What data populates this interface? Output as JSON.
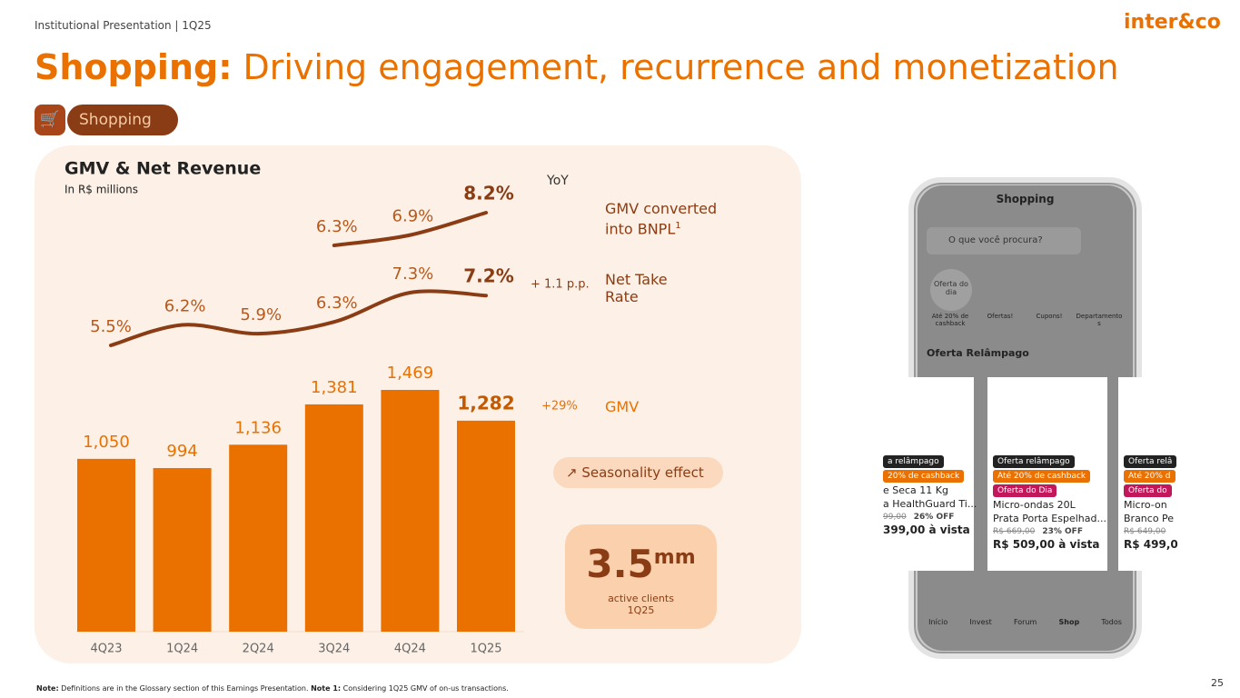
{
  "header": {
    "subtitle": "Institutional Presentation | 1Q25",
    "logo": "inter&co",
    "title_bold": "Shopping:",
    "title_rest": " Driving engagement, recurrence and monetization",
    "tag": "Shopping"
  },
  "chart_data": {
    "type": "combo",
    "title": "GMV & Net Revenue",
    "subtitle": "In R$ millions",
    "yoy_label": "YoY",
    "categories": [
      "4Q23",
      "1Q24",
      "2Q24",
      "3Q24",
      "4Q24",
      "1Q25"
    ],
    "series": [
      {
        "name": "GMV",
        "type": "bar",
        "color": "#ea7100",
        "values": [
          1050,
          994,
          1136,
          1381,
          1469,
          1282
        ],
        "value_labels": [
          "1,050",
          "994",
          "1,136",
          "1,381",
          "1,469",
          "1,282"
        ],
        "yoy": "+29%"
      },
      {
        "name": "Net Take Rate",
        "type": "line",
        "color": "#8a3d14",
        "values": [
          5.5,
          6.2,
          5.9,
          6.3,
          7.3,
          7.2
        ],
        "value_labels": [
          "5.5%",
          "6.2%",
          "5.9%",
          "6.3%",
          "7.3%",
          "7.2%"
        ],
        "yoy": "+ 1.1 p.p."
      },
      {
        "name": "GMV converted into BNPL",
        "name_note": "1",
        "type": "line",
        "color": "#8a3d14",
        "values": [
          null,
          null,
          null,
          6.3,
          6.9,
          8.2
        ],
        "value_labels": [
          null,
          null,
          null,
          "6.3%",
          "6.9%",
          "8.2%"
        ]
      }
    ]
  },
  "callouts": {
    "seasonality": "Seasonality effect",
    "clients_value": 3.5,
    "clients_unit": "mm",
    "clients_label": "active clients",
    "clients_period": "1Q25"
  },
  "phone": {
    "header": "Shopping",
    "search": "O que você procura?",
    "badge": "Oferta do dia",
    "icons": [
      "Até 20% de cashback",
      "Ofertas!",
      "Cupons!",
      "Departamentos"
    ],
    "section": "Oferta Relâmpago",
    "cards": [
      [
        "a relâmpago",
        "20% de cashback",
        "",
        "e Seca 11 Kg",
        "a HealthGuard Ti...",
        "99,00",
        "26% OFF",
        "399,00 à vista"
      ],
      [
        "Oferta relâmpago",
        "Até 20% de cashback",
        "Oferta do Dia",
        "Micro-ondas 20L",
        "Prata Porta Espelhad...",
        "R$ 669,00",
        "23% OFF",
        "R$ 509,00 à vista"
      ],
      [
        "Oferta relâ",
        "Até 20% d",
        "Oferta do",
        "Micro-on",
        "Branco Pe",
        "R$ 649,00",
        "",
        "R$ 499,0"
      ]
    ],
    "nav": [
      "Início",
      "Invest",
      "Forum",
      "Shop",
      "Todos"
    ]
  },
  "footer": {
    "note_label": "Note:",
    "note": " Definitions are in the Glossary section of this Earnings Presentation.",
    "note1_label": "Note 1:",
    "note1": " Considering 1Q25 GMV of on-us transactions.",
    "page": 25
  }
}
